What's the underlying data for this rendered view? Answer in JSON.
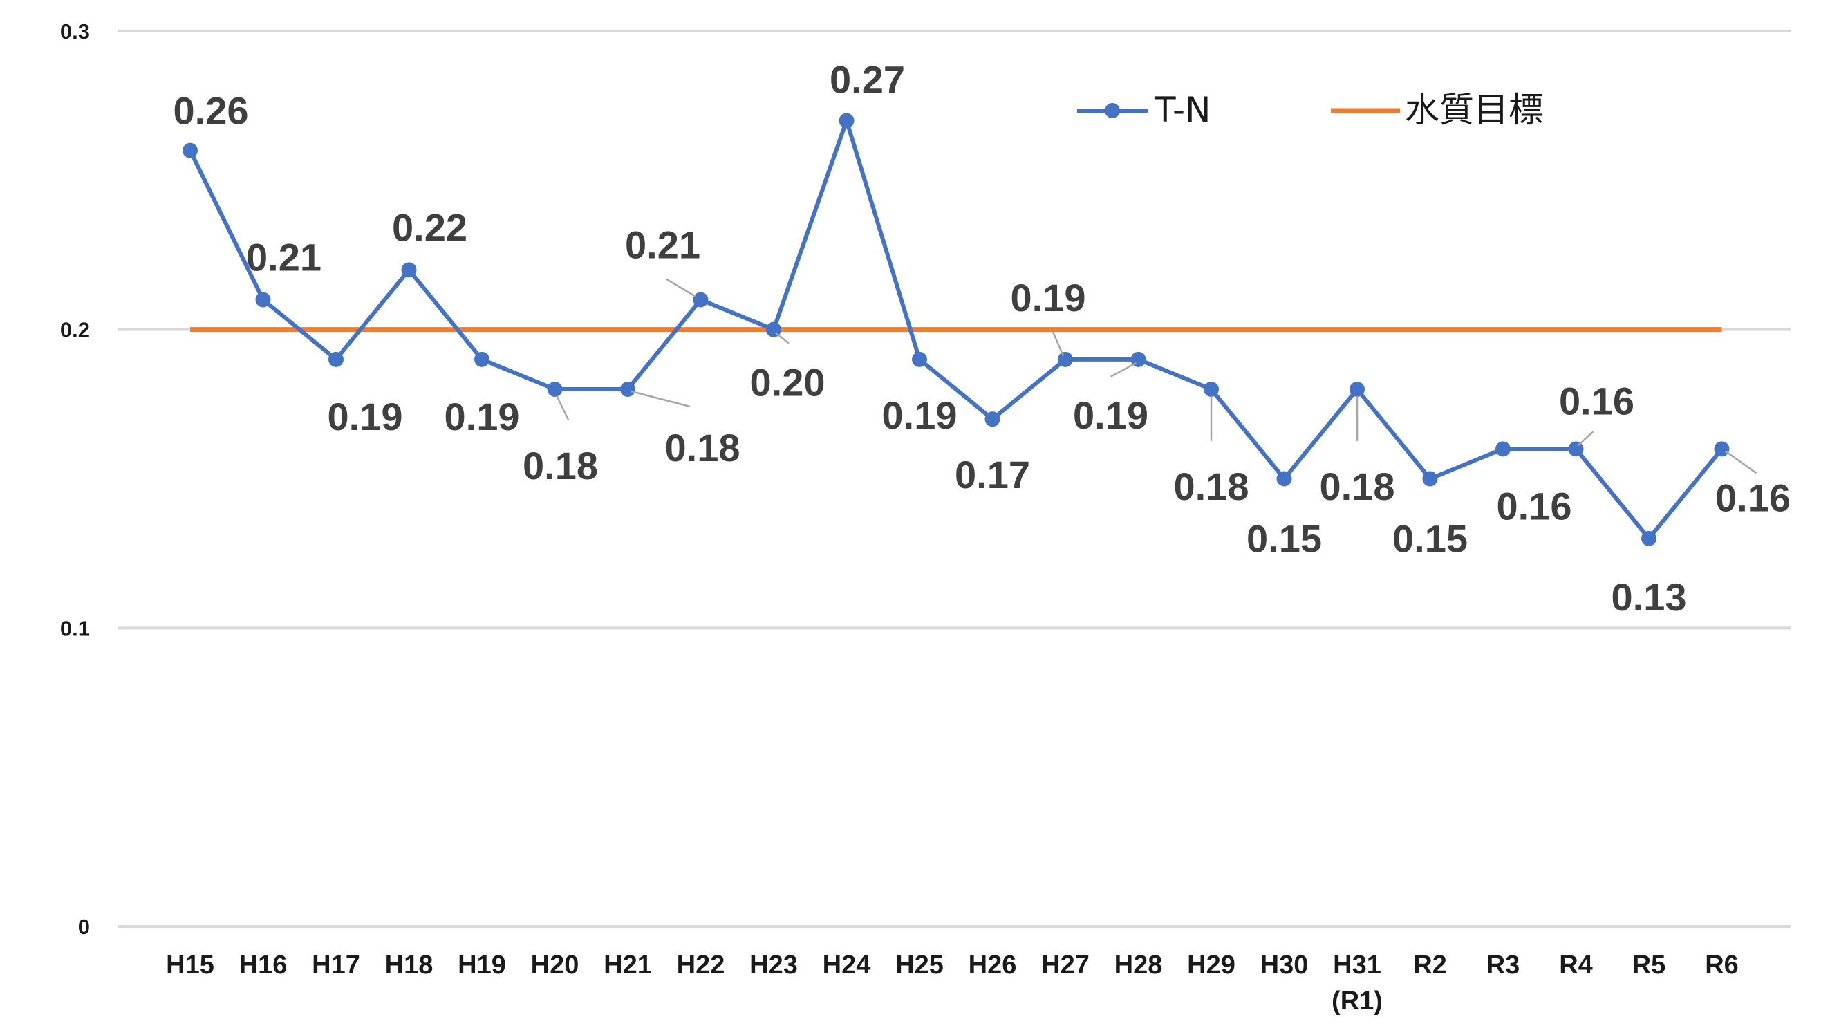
{
  "chart_data": {
    "type": "line",
    "title": "",
    "xlabel": "",
    "ylabel": "",
    "ylim": [
      0,
      0.3
    ],
    "y_ticks": [
      "0",
      "0.1",
      "0.2",
      "0.3"
    ],
    "grid": "horizontal",
    "legend_position": "top-right",
    "categories": [
      "H15",
      "H16",
      "H17",
      "H18",
      "H19",
      "H20",
      "H21",
      "H22",
      "H23",
      "H24",
      "H25",
      "H26",
      "H27",
      "H28",
      "H29",
      "H30",
      "H31\n(R1)",
      "R2",
      "R3",
      "R4",
      "R5",
      "R6"
    ],
    "series": [
      {
        "name": "T-N",
        "color": "#4472C4",
        "marker": "circle",
        "values": [
          0.26,
          0.21,
          0.19,
          0.22,
          0.19,
          0.18,
          0.18,
          0.21,
          0.2,
          0.27,
          0.19,
          0.17,
          0.19,
          0.19,
          0.18,
          0.15,
          0.18,
          0.15,
          0.16,
          0.16,
          0.13,
          0.16
        ],
        "data_labels": [
          "0.26",
          "0.21",
          "0.19",
          "0.22",
          "0.19",
          "0.18",
          "0.18",
          "0.21",
          "0.20",
          "0.27",
          "0.19",
          "0.17",
          "0.19",
          "0.19",
          "0.18",
          "0.15",
          "0.18",
          "0.15",
          "0.16",
          "0.16",
          "0.13",
          "0.16"
        ]
      },
      {
        "name": "水質目標",
        "color": "#ED7D31",
        "marker": "none",
        "values": [
          0.2,
          0.2,
          0.2,
          0.2,
          0.2,
          0.2,
          0.2,
          0.2,
          0.2,
          0.2,
          0.2,
          0.2,
          0.2,
          0.2,
          0.2,
          0.2,
          0.2,
          0.2,
          0.2,
          0.2,
          0.2,
          0.2
        ]
      }
    ]
  }
}
